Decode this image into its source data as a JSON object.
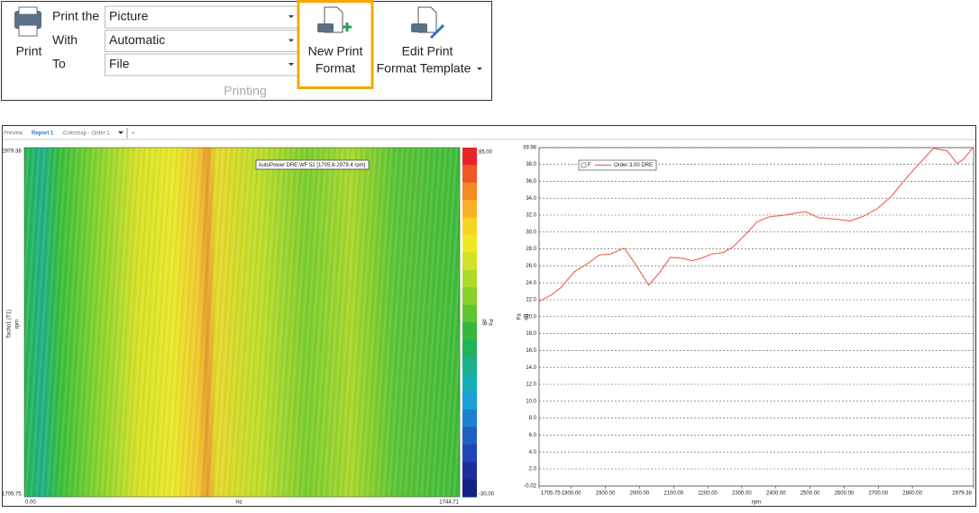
{
  "ribbon": {
    "print_button": "Print",
    "rows": [
      {
        "label": "Print the",
        "value": "Picture"
      },
      {
        "label": "With",
        "value": "Automatic"
      },
      {
        "label": "To",
        "value": "File"
      }
    ],
    "new_print_format": [
      "New Print",
      "Format"
    ],
    "edit_print_format": [
      "Edit Print",
      "Format Template"
    ],
    "group_label": "Printing"
  },
  "tabs": [
    "Preview",
    "Report 1",
    "Colormap - Order 1",
    "+"
  ],
  "colormap": {
    "annotation": "AutoPower DRE WF 52 [1705.8-2979.4 rpm]",
    "y_top": "2979.38",
    "y_bottom": "1705.75",
    "y_label": "Tacho1 (T1)",
    "y_unit": "rpm",
    "x_left": "0.00",
    "x_right": "1744.71",
    "x_label": "Hz",
    "colorbar_top": "85.00",
    "colorbar_bottom": "-30.00",
    "colorbar_label": "dB",
    "colorbar_unit": "Pa"
  },
  "chart_data": {
    "type": "line",
    "legend_checkbox_label": "F",
    "x_label": "rpm",
    "y_label": "dB",
    "y_unit": "Pa",
    "x": [
      1706,
      1743,
      1769,
      1809,
      1849,
      1883,
      1915,
      1955,
      1987,
      2027,
      2061,
      2090,
      2127,
      2154,
      2180,
      2212,
      2247,
      2273,
      2313,
      2345,
      2380,
      2425,
      2467,
      2486,
      2525,
      2578,
      2618,
      2658,
      2698,
      2738,
      2772,
      2809,
      2839,
      2862,
      2902,
      2931,
      2950,
      2976
    ],
    "series": [
      {
        "name": "Order 3.00 DRE",
        "color": "#f06a5a",
        "values": [
          21.8,
          22.6,
          23.4,
          25.3,
          26.3,
          27.3,
          27.4,
          28.1,
          26.3,
          23.7,
          25.3,
          27.0,
          26.9,
          26.6,
          26.9,
          27.4,
          27.6,
          28.2,
          29.8,
          31.2,
          31.8,
          32.0,
          32.3,
          32.4,
          31.7,
          31.5,
          31.3,
          31.9,
          32.8,
          34.2,
          35.9,
          37.6,
          38.9,
          39.9,
          39.6,
          38.1,
          38.6,
          39.9
        ]
      }
    ],
    "xlim": [
      1705.75,
      2979.38
    ],
    "xticks": [
      1705.75,
      {
        "value": 1800,
        "label": "1800.00"
      },
      {
        "value": 1900,
        "label": "1900.00"
      },
      {
        "value": 2000,
        "label": "2000.00"
      },
      {
        "value": 2100,
        "label": "2100.00"
      },
      {
        "value": 2200,
        "label": "2200.00"
      },
      {
        "value": 2300,
        "label": "2300.00"
      },
      {
        "value": 2400,
        "label": "2400.00"
      },
      {
        "value": 2500,
        "label": "2500.00"
      },
      {
        "value": 2600,
        "label": "2600.00"
      },
      {
        "value": 2700,
        "label": "2700.00"
      },
      {
        "value": 2800,
        "label": "2800.00"
      },
      2979.38
    ],
    "ylim": [
      -0.02,
      39.98
    ],
    "yticks": [
      -0.02,
      {
        "value": 2,
        "label": "2.0"
      },
      {
        "value": 4,
        "label": "4.0"
      },
      {
        "value": 6,
        "label": "6.0"
      },
      {
        "value": 8,
        "label": "8.0"
      },
      {
        "value": 10,
        "label": "10.0"
      },
      {
        "value": 12,
        "label": "12.0"
      },
      {
        "value": 14,
        "label": "14.0"
      },
      {
        "value": 16,
        "label": "16.0"
      },
      {
        "value": 18,
        "label": "18.0"
      },
      {
        "value": 20,
        "label": "20.0"
      },
      {
        "value": 22,
        "label": "22.0"
      },
      {
        "value": 24,
        "label": "24.0"
      },
      {
        "value": 26,
        "label": "26.0"
      },
      {
        "value": 28,
        "label": "28.0"
      },
      {
        "value": 30,
        "label": "30.0"
      },
      {
        "value": 32,
        "label": "32.0"
      },
      {
        "value": 34,
        "label": "34.0"
      },
      {
        "value": 36,
        "label": "36.0"
      },
      {
        "value": 38,
        "label": "38.0"
      },
      39.98
    ],
    "grid": true
  }
}
